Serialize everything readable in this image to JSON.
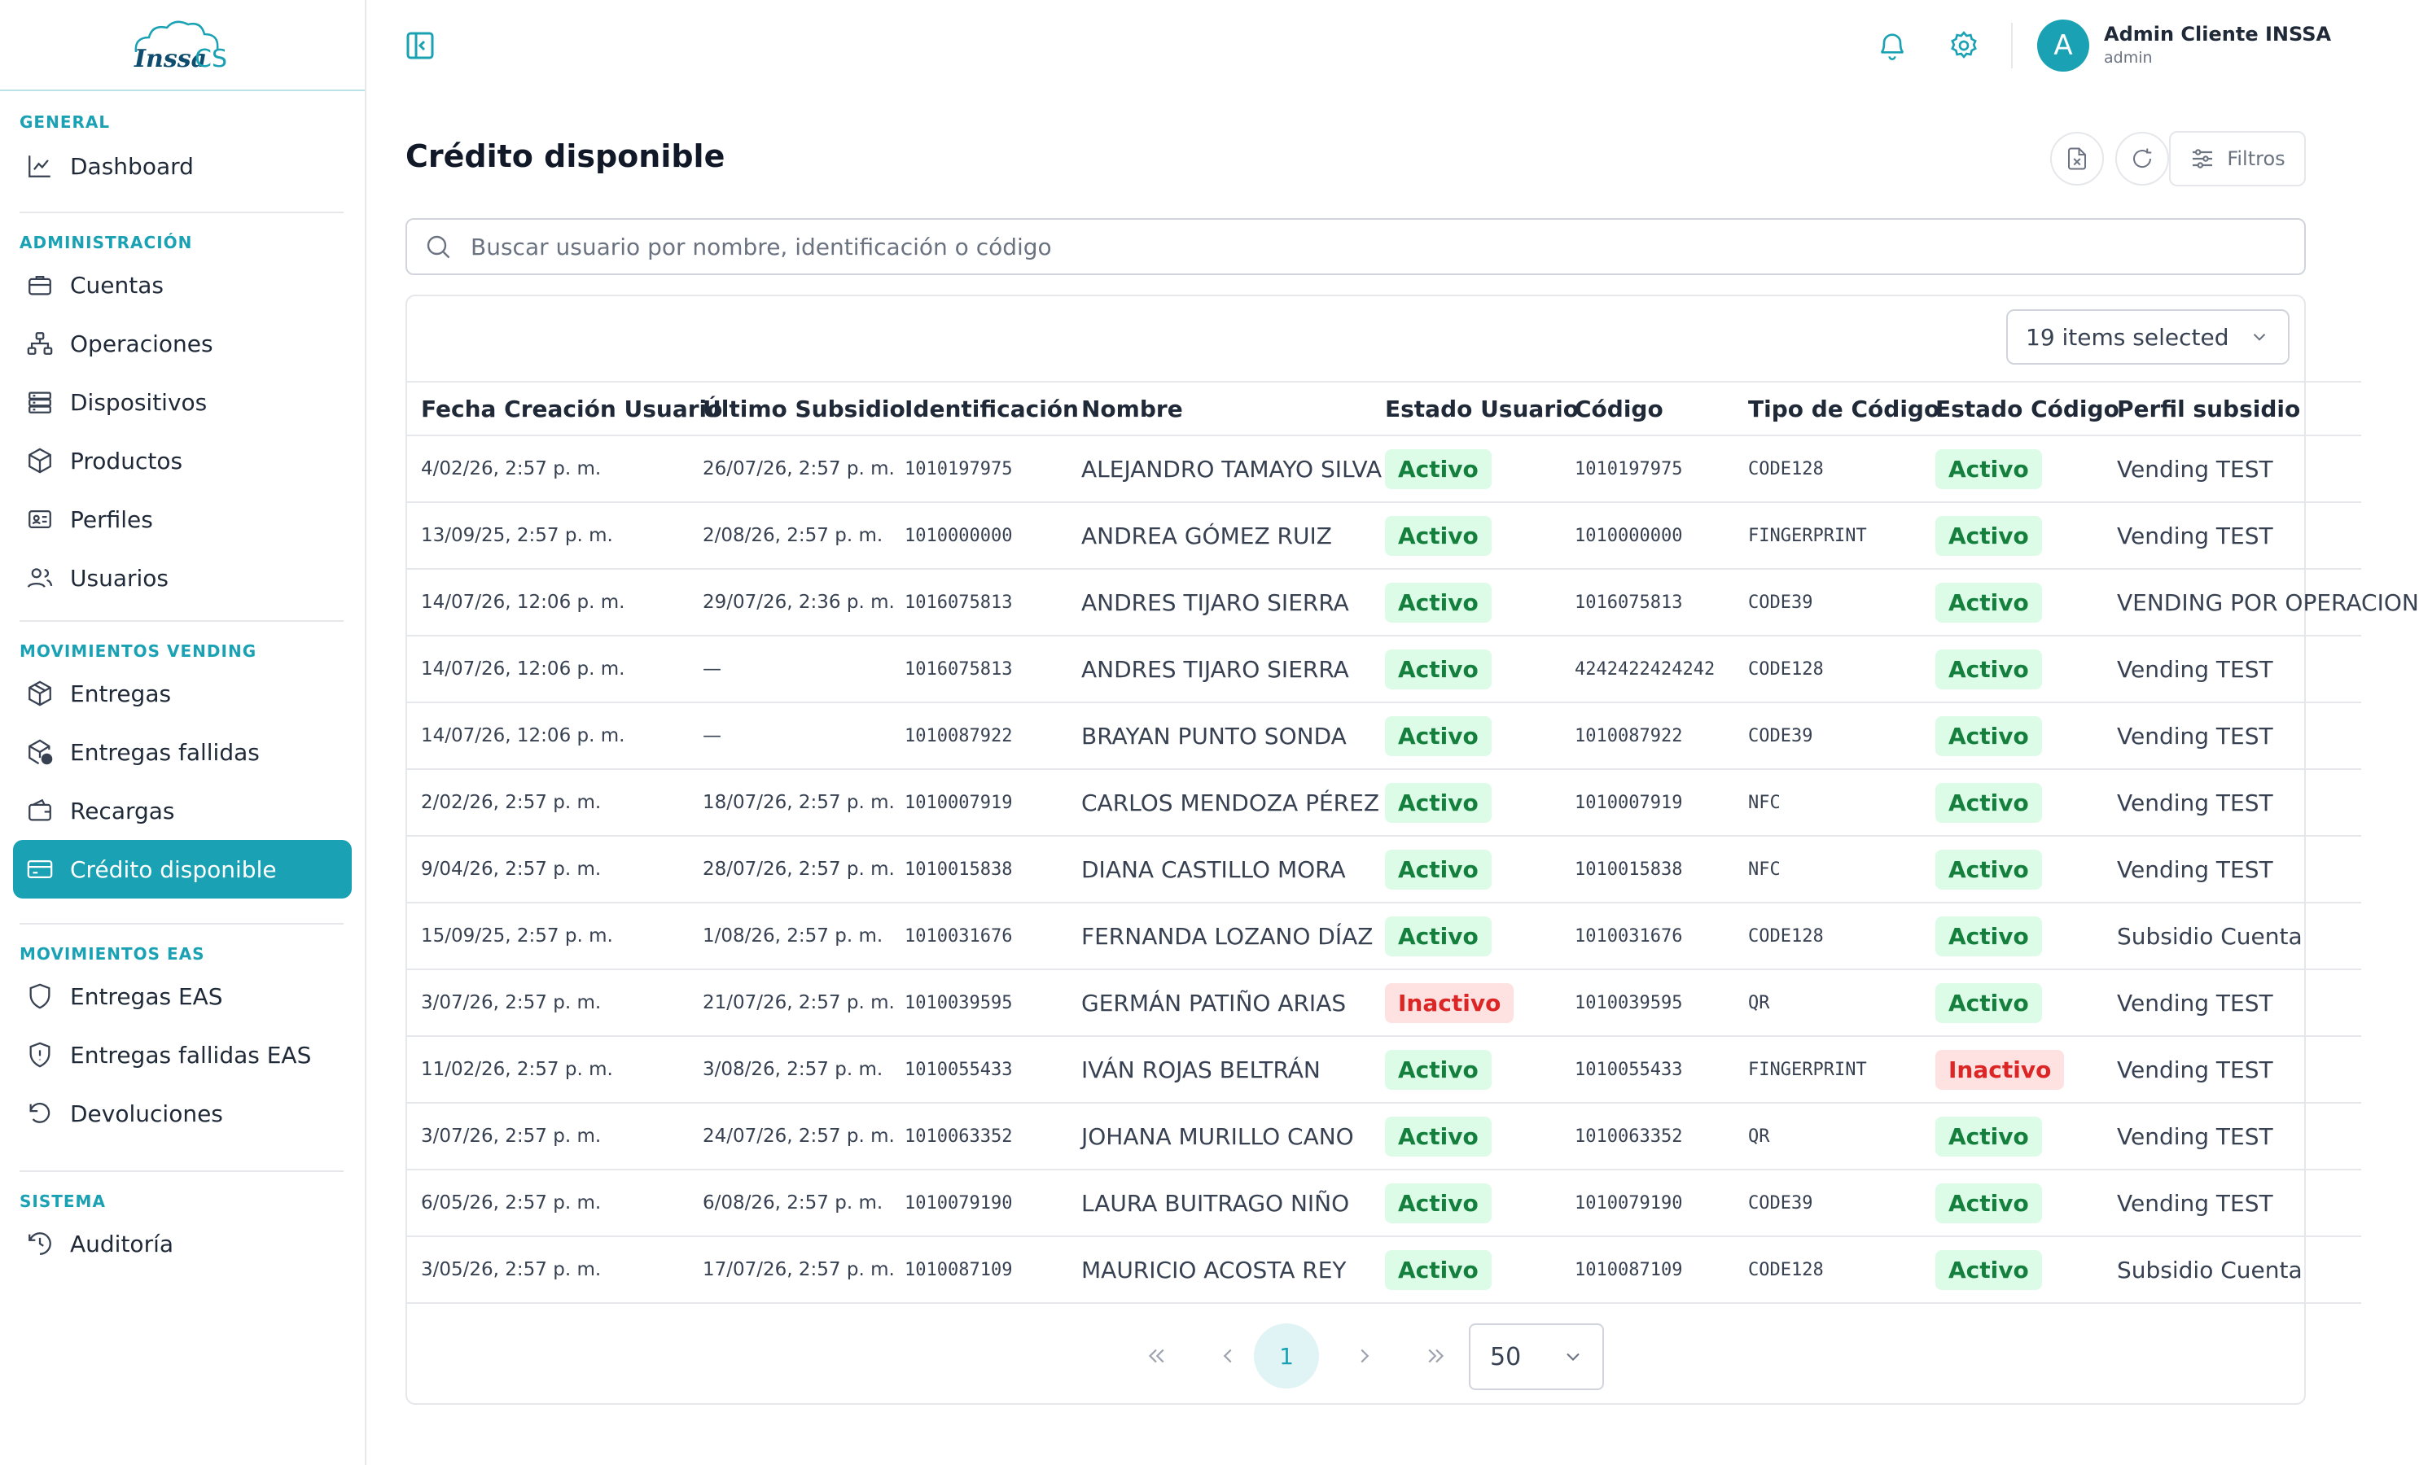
{
  "brand": {
    "name": "Inssa CS"
  },
  "sidebar": {
    "sections": [
      {
        "title": "GENERAL",
        "items": [
          {
            "label": "Dashboard",
            "icon": "chart-line-icon"
          }
        ]
      },
      {
        "title": "ADMINISTRACIÓN",
        "items": [
          {
            "label": "Cuentas",
            "icon": "briefcase-icon"
          },
          {
            "label": "Operaciones",
            "icon": "network-icon"
          },
          {
            "label": "Dispositivos",
            "icon": "server-icon"
          },
          {
            "label": "Productos",
            "icon": "package-icon"
          },
          {
            "label": "Perfiles",
            "icon": "id-card-icon"
          },
          {
            "label": "Usuarios",
            "icon": "users-icon"
          }
        ]
      },
      {
        "title": "MOVIMIENTOS VENDING",
        "items": [
          {
            "label": "Entregas",
            "icon": "box-icon"
          },
          {
            "label": "Entregas fallidas",
            "icon": "box-alert-icon"
          },
          {
            "label": "Recargas",
            "icon": "wallet-icon"
          },
          {
            "label": "Crédito disponible",
            "icon": "credit-card-icon",
            "active": true
          }
        ]
      },
      {
        "title": "MOVIMIENTOS EAS",
        "items": [
          {
            "label": "Entregas EAS",
            "icon": "shield-icon"
          },
          {
            "label": "Entregas fallidas EAS",
            "icon": "shield-alert-icon"
          },
          {
            "label": "Devoluciones",
            "icon": "undo-icon"
          }
        ]
      },
      {
        "title": "SISTEMA",
        "items": [
          {
            "label": "Auditoría",
            "icon": "history-icon"
          }
        ]
      }
    ]
  },
  "header": {
    "user": {
      "initial": "A",
      "name": "Admin Cliente INSSA",
      "role": "admin"
    }
  },
  "main": {
    "title": "Crédito disponible",
    "filters_label": "Filtros",
    "search_placeholder": "Buscar usuario por nombre, identificación o código",
    "columns_selected": "19 items selected",
    "columns": [
      "Fecha Creación Usuario",
      "Último Subsidio",
      "Identificación",
      "Nombre",
      "Estado Usuario",
      "Código",
      "Tipo de Código",
      "Estado Código",
      "Perfil subsidio"
    ],
    "rows": [
      [
        "4/02/26, 2:57 p. m.",
        "26/07/26, 2:57 p. m.",
        "1010197975",
        "ALEJANDRO TAMAYO SILVA",
        "Activo",
        "1010197975",
        "CODE128",
        "Activo",
        "Vending TEST"
      ],
      [
        "13/09/25, 2:57 p. m.",
        "2/08/26, 2:57 p. m.",
        "1010000000",
        "ANDREA GÓMEZ RUIZ",
        "Activo",
        "1010000000",
        "FINGERPRINT",
        "Activo",
        "Vending TEST"
      ],
      [
        "14/07/26, 12:06 p. m.",
        "29/07/26, 2:36 p. m.",
        "1016075813",
        "ANDRES TIJARO SIERRA",
        "Activo",
        "1016075813",
        "CODE39",
        "Activo",
        "VENDING POR OPERACION"
      ],
      [
        "14/07/26, 12:06 p. m.",
        "—",
        "1016075813",
        "ANDRES TIJARO SIERRA",
        "Activo",
        "4242422424242",
        "CODE128",
        "Activo",
        "Vending TEST"
      ],
      [
        "14/07/26, 12:06 p. m.",
        "—",
        "1010087922",
        "BRAYAN PUNTO SONDA",
        "Activo",
        "1010087922",
        "CODE39",
        "Activo",
        "Vending TEST"
      ],
      [
        "2/02/26, 2:57 p. m.",
        "18/07/26, 2:57 p. m.",
        "1010007919",
        "CARLOS MENDOZA PÉREZ",
        "Activo",
        "1010007919",
        "NFC",
        "Activo",
        "Vending TEST"
      ],
      [
        "9/04/26, 2:57 p. m.",
        "28/07/26, 2:57 p. m.",
        "1010015838",
        "DIANA CASTILLO MORA",
        "Activo",
        "1010015838",
        "NFC",
        "Activo",
        "Vending TEST"
      ],
      [
        "15/09/25, 2:57 p. m.",
        "1/08/26, 2:57 p. m.",
        "1010031676",
        "FERNANDA LOZANO DÍAZ",
        "Activo",
        "1010031676",
        "CODE128",
        "Activo",
        "Subsidio Cuenta"
      ],
      [
        "3/07/26, 2:57 p. m.",
        "21/07/26, 2:57 p. m.",
        "1010039595",
        "GERMÁN PATIÑO ARIAS",
        "Inactivo",
        "1010039595",
        "QR",
        "Activo",
        "Vending TEST"
      ],
      [
        "11/02/26, 2:57 p. m.",
        "3/08/26, 2:57 p. m.",
        "1010055433",
        "IVÁN ROJAS BELTRÁN",
        "Activo",
        "1010055433",
        "FINGERPRINT",
        "Inactivo",
        "Vending TEST"
      ],
      [
        "3/07/26, 2:57 p. m.",
        "24/07/26, 2:57 p. m.",
        "1010063352",
        "JOHANA MURILLO CANO",
        "Activo",
        "1010063352",
        "QR",
        "Activo",
        "Vending TEST"
      ],
      [
        "6/05/26, 2:57 p. m.",
        "6/08/26, 2:57 p. m.",
        "1010079190",
        "LAURA BUITRAGO NIÑO",
        "Activo",
        "1010079190",
        "CODE39",
        "Activo",
        "Vending TEST"
      ],
      [
        "3/05/26, 2:57 p. m.",
        "17/07/26, 2:57 p. m.",
        "1010087109",
        "MAURICIO ACOSTA REY",
        "Activo",
        "1010087109",
        "CODE128",
        "Activo",
        "Subsidio Cuenta"
      ]
    ],
    "pagination": {
      "current_page": "1",
      "page_size": "50"
    }
  },
  "colors": {
    "accent": "#1aa2b4",
    "active_bg": "#dcfce7",
    "active_text": "#15803d",
    "inactive_bg": "#fee2e2",
    "inactive_text": "#dc2626"
  }
}
